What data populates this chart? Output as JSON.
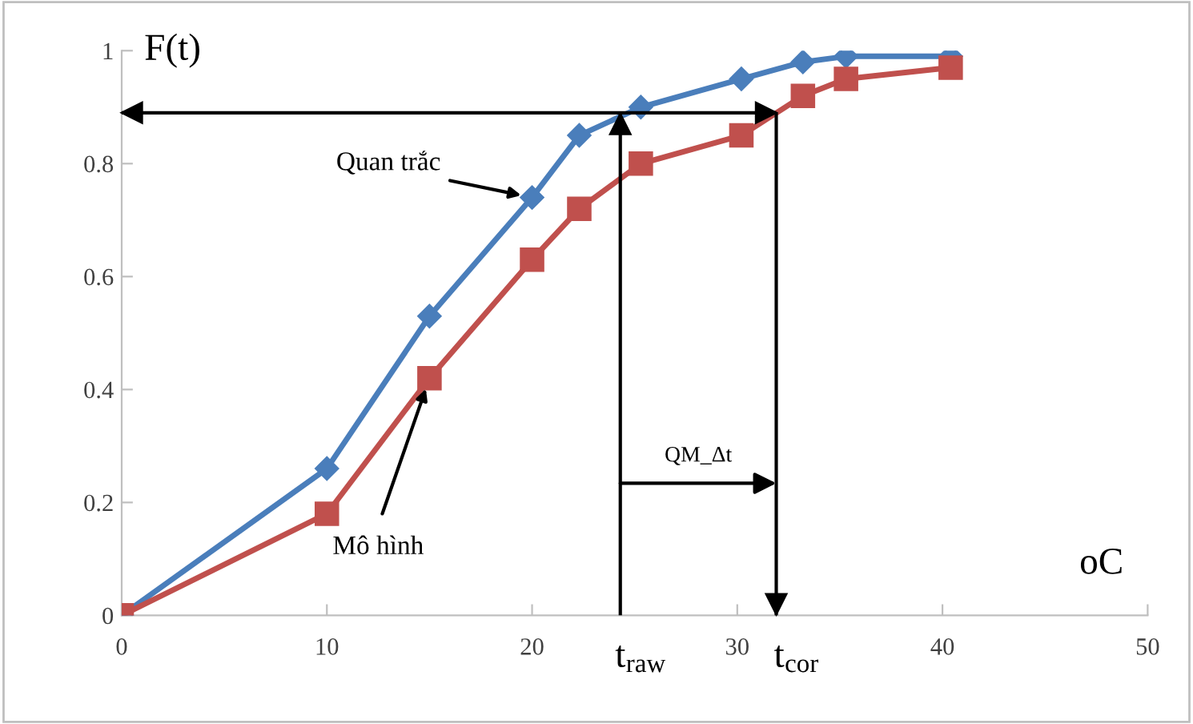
{
  "chart_data": {
    "type": "line",
    "xlabel": "oC",
    "ylabel": "F(t)",
    "xlim": [
      0,
      50
    ],
    "xticks": [
      0,
      10,
      20,
      30,
      40,
      50
    ],
    "ylim": [
      0,
      1
    ],
    "yticks": [
      0,
      0.2,
      0.4,
      0.6,
      0.8,
      1
    ],
    "grid": false,
    "legend": false,
    "series": [
      {
        "name": "Quan trắc",
        "color": "#4a7ebb",
        "marker": "diamond",
        "x": [
          0,
          10,
          15,
          20,
          22.3,
          25.3,
          30.2,
          33.2,
          35.3,
          40.4
        ],
        "values": [
          0,
          0.26,
          0.53,
          0.74,
          0.85,
          0.9,
          0.95,
          0.98,
          0.99,
          0.99
        ]
      },
      {
        "name": "Mô hình",
        "color": "#c0504d",
        "marker": "square",
        "x": [
          0,
          10,
          15,
          20,
          22.3,
          25.3,
          30.2,
          33.2,
          35.3,
          40.4
        ],
        "values": [
          0,
          0.18,
          0.42,
          0.63,
          0.72,
          0.8,
          0.85,
          0.92,
          0.95,
          0.97
        ]
      }
    ],
    "ref_lines": [
      {
        "axis": "x",
        "value": 24.3,
        "label": "t$_{raw}$",
        "color": "#000000"
      },
      {
        "axis": "x",
        "value": 31.9,
        "label": "t$_{cor}$",
        "color": "#000000"
      },
      {
        "axis": "y",
        "value": 0.89,
        "color": "#000000"
      }
    ],
    "annotations": [
      "QM_Δt"
    ]
  }
}
